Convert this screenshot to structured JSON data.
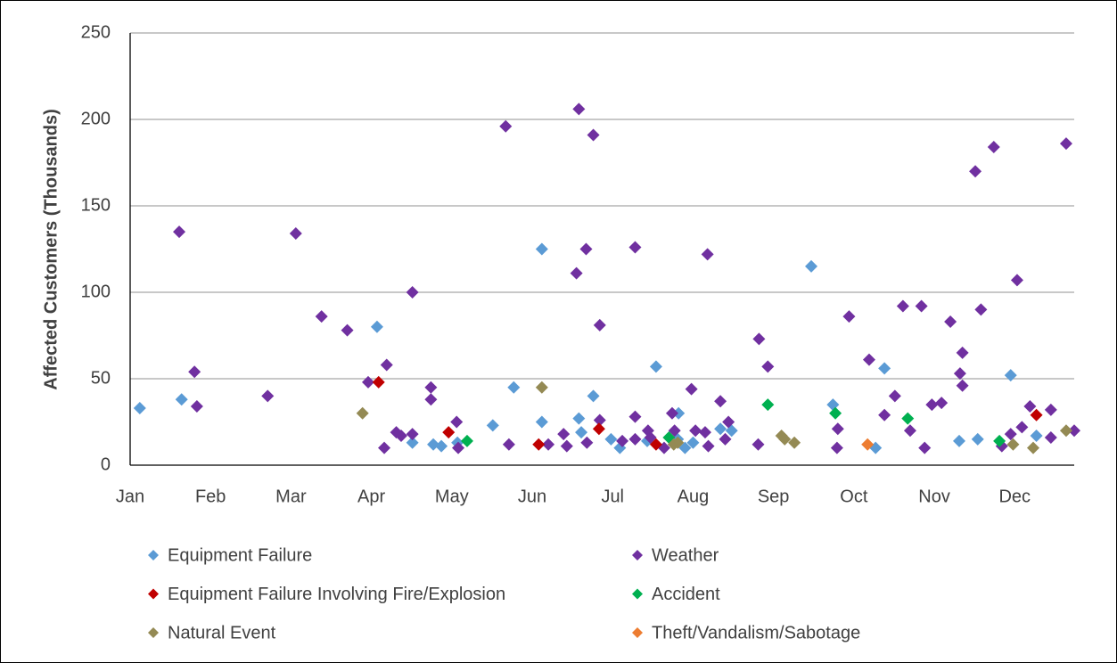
{
  "chart_data": {
    "type": "scatter",
    "y_label": "Affected Customers (Thousands)",
    "xlim": [
      0,
      11.74
    ],
    "xticks": [
      {
        "value": 0,
        "label": "Jan"
      },
      {
        "value": 1,
        "label": "Feb"
      },
      {
        "value": 2,
        "label": "Mar"
      },
      {
        "value": 3,
        "label": "Apr"
      },
      {
        "value": 4,
        "label": "May"
      },
      {
        "value": 5,
        "label": "Jun"
      },
      {
        "value": 6,
        "label": "Jul"
      },
      {
        "value": 7,
        "label": "Aug"
      },
      {
        "value": 8,
        "label": "Sep"
      },
      {
        "value": 9,
        "label": "Oct"
      },
      {
        "value": 10,
        "label": "Nov"
      },
      {
        "value": 11,
        "label": "Dec"
      }
    ],
    "ylim": [
      0,
      250
    ],
    "yticks": [
      0,
      50,
      100,
      150,
      200,
      250
    ],
    "grid": true,
    "series": [
      {
        "name": "Equipment Failure",
        "color": "#5b9bd5",
        "x": [
          0.12,
          0.64,
          3.07,
          3.51,
          3.77,
          3.87,
          4.07,
          4.51,
          4.77,
          5.12,
          5.12,
          5.58,
          5.61,
          5.76,
          5.98,
          6.09,
          6.43,
          6.54,
          6.81,
          6.82,
          6.9,
          7.0,
          7.34,
          7.48,
          8.47,
          8.74,
          9.27,
          9.38,
          10.31,
          10.54,
          10.95,
          11.27
        ],
        "values": [
          33,
          38,
          80,
          13,
          12,
          11,
          13,
          23,
          45,
          125,
          25,
          27,
          19,
          40,
          15,
          10,
          14,
          57,
          15,
          30,
          10,
          13,
          21,
          20,
          115,
          35,
          10,
          56,
          14,
          15,
          52,
          17
        ]
      },
      {
        "name": "Weather",
        "color": "#7030a0",
        "x": [
          0.61,
          0.8,
          0.83,
          1.71,
          2.06,
          2.38,
          2.7,
          2.96,
          3.16,
          3.19,
          3.31,
          3.37,
          3.51,
          3.51,
          3.74,
          3.74,
          4.06,
          4.08,
          4.67,
          4.71,
          5.2,
          5.39,
          5.43,
          5.55,
          5.58,
          5.67,
          5.68,
          5.76,
          5.84,
          5.84,
          6.12,
          6.28,
          6.28,
          6.28,
          6.44,
          6.47,
          6.64,
          6.74,
          6.77,
          6.98,
          7.03,
          7.15,
          7.19,
          7.18,
          7.34,
          7.4,
          7.44,
          7.82,
          7.81,
          7.93,
          8.79,
          8.8,
          8.94,
          9.19,
          9.38,
          9.51,
          9.61,
          9.7,
          9.84,
          9.88,
          9.97,
          10.09,
          10.2,
          10.32,
          10.35,
          10.35,
          10.51,
          10.58,
          10.74,
          10.84,
          10.95,
          11.03,
          11.09,
          11.19,
          11.45,
          11.45,
          11.64,
          11.74
        ],
        "values": [
          135,
          54,
          34,
          40,
          134,
          86,
          78,
          48,
          10,
          58,
          19,
          17,
          18,
          100,
          45,
          38,
          25,
          10,
          196,
          12,
          12,
          18,
          11,
          111,
          206,
          125,
          13,
          191,
          81,
          26,
          14,
          15,
          126,
          28,
          20,
          16,
          10,
          30,
          20,
          44,
          20,
          19,
          11,
          122,
          37,
          15,
          25,
          73,
          12,
          57,
          10,
          21,
          86,
          61,
          29,
          40,
          92,
          20,
          92,
          10,
          35,
          36,
          83,
          53,
          65,
          46,
          170,
          90,
          184,
          11,
          18,
          107,
          22,
          34,
          32,
          16,
          186,
          20
        ]
      },
      {
        "name": "Equipment Failure Involving Fire/Explosion",
        "color": "#c00000",
        "x": [
          3.09,
          3.96,
          5.08,
          5.83,
          6.54,
          11.27
        ],
        "values": [
          48,
          19,
          12,
          21,
          12,
          29
        ]
      },
      {
        "name": "Accident",
        "color": "#00b050",
        "x": [
          4.19,
          6.7,
          7.93,
          8.77,
          9.67,
          10.81
        ],
        "values": [
          14,
          16,
          35,
          30,
          27,
          14
        ]
      },
      {
        "name": "Natural Event",
        "color": "#948a54",
        "x": [
          2.89,
          5.12,
          6.76,
          6.81,
          8.1,
          8.14,
          8.26,
          10.98,
          11.23,
          11.64
        ],
        "values": [
          30,
          45,
          12,
          13,
          17,
          15,
          13,
          12,
          10,
          20
        ]
      },
      {
        "name": "Theft/Vandalism/Sabotage",
        "color": "#ed7d31",
        "x": [
          9.17
        ],
        "values": [
          12
        ]
      }
    ]
  }
}
